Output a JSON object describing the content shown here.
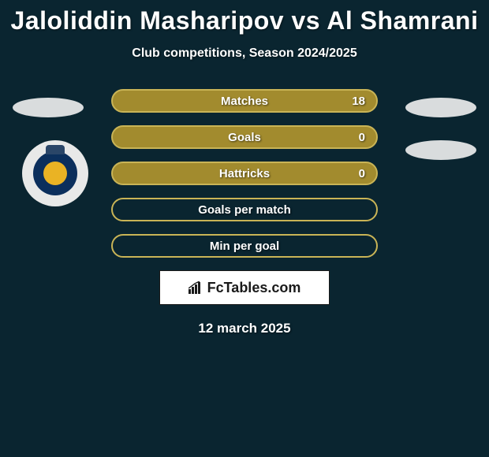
{
  "title": "Jaloliddin Masharipov vs Al Shamrani",
  "subtitle": "Club competitions, Season 2024/2025",
  "stat_rows": [
    {
      "label": "Matches",
      "value": "18",
      "bg": "#a28b2e",
      "border": "#c9b456"
    },
    {
      "label": "Goals",
      "value": "0",
      "bg": "#a28b2e",
      "border": "#c9b456"
    },
    {
      "label": "Hattricks",
      "value": "0",
      "bg": "#a28b2e",
      "border": "#c9b456"
    },
    {
      "label": "Goals per match",
      "value": "",
      "bg": "transparent",
      "border": "#c9b456"
    },
    {
      "label": "Min per goal",
      "value": "",
      "bg": "transparent",
      "border": "#c9b456"
    }
  ],
  "brand": "FcTables.com",
  "date": "12 march 2025",
  "colors": {
    "page_bg": "#0a2530",
    "pill_fill": "#a28b2e",
    "pill_border": "#c9b456",
    "text": "#ffffff",
    "badge_gray": "#d9dcdd",
    "club_outer": "#e8e9e8",
    "club_inner": "#0b2f5c",
    "club_accent": "#eab324"
  }
}
